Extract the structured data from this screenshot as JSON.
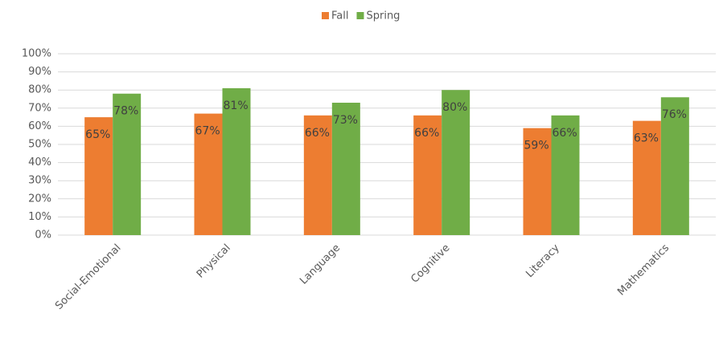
{
  "chart_data": {
    "type": "bar",
    "categories": [
      "Social-Emotional",
      "Physical",
      "Language",
      "Cognitive",
      "Literacy",
      "Mathematics"
    ],
    "series": [
      {
        "name": "Fall",
        "color": "#ed7d31",
        "values": [
          65,
          67,
          66,
          66,
          59,
          63
        ],
        "value_labels": [
          "65%",
          "67%",
          "66%",
          "66%",
          "59%",
          "63%"
        ]
      },
      {
        "name": "Spring",
        "color": "#70ad47",
        "values": [
          78,
          81,
          73,
          80,
          66,
          76
        ],
        "value_labels": [
          "78%",
          "81%",
          "73%",
          "80%",
          "66%",
          "76%"
        ]
      }
    ],
    "ylim": [
      0,
      100
    ],
    "yticks": [
      {
        "value": 0,
        "label": "0%"
      },
      {
        "value": 10,
        "label": "10%"
      },
      {
        "value": 20,
        "label": "20%"
      },
      {
        "value": 30,
        "label": "30%"
      },
      {
        "value": 40,
        "label": "40%"
      },
      {
        "value": 50,
        "label": "50%"
      },
      {
        "value": 60,
        "label": "60%"
      },
      {
        "value": 70,
        "label": "70%"
      },
      {
        "value": 80,
        "label": "80%"
      },
      {
        "value": 90,
        "label": "90%"
      },
      {
        "value": 100,
        "label": "100%"
      }
    ],
    "grid": true,
    "legend": "top"
  }
}
